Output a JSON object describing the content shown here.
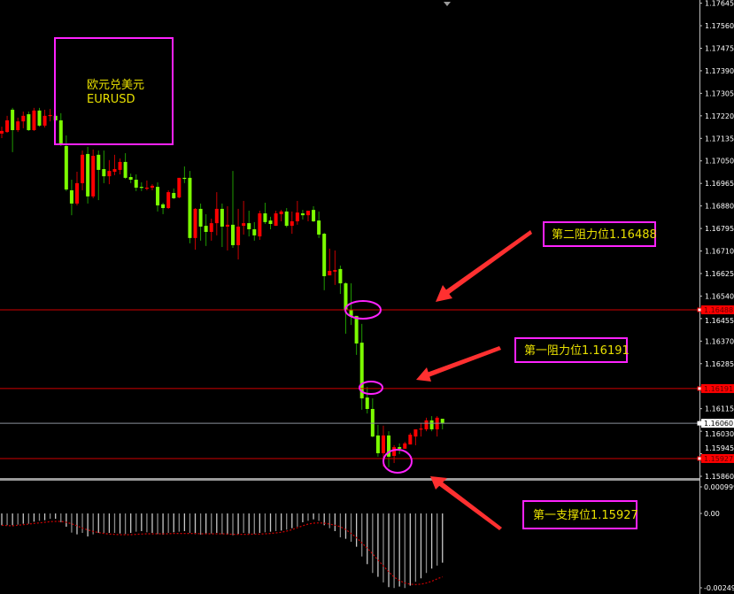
{
  "chart_data": {
    "type": "candlestick",
    "symbol_label": {
      "line1": "欧元兑美元",
      "line2": "EURUSD"
    },
    "colors": {
      "bull_body": "#ff0000",
      "bear_body": "#7cfc00",
      "bull_wick": "#c80000",
      "bear_wick": "#1f9a00",
      "level_line": "#d00000",
      "bid_line": "#8a909a",
      "annotation_border": "#ff22ff",
      "annotation_text": "#e8e000",
      "arrow": "#ff3030",
      "macd_bar": "#c8c8c8",
      "signal_line": "#cc0000"
    },
    "y_axis": {
      "ylim": [
        1.1586,
        1.17657
      ],
      "ticks": [
        "1.17645",
        "1.17560",
        "1.17475",
        "1.17390",
        "1.17305",
        "1.17220",
        "1.17135",
        "1.17050",
        "1.16965",
        "1.16880",
        "1.16795",
        "1.16710",
        "1.16625",
        "1.16540",
        "1.16455",
        "1.16370",
        "1.16285",
        "1.16115",
        "1.16030",
        "1.15945",
        "1.15860"
      ]
    },
    "current_price": {
      "value": 1.1606,
      "label": "1.16060"
    },
    "levels": [
      {
        "value": 1.16488,
        "label": "1.16488",
        "note": "第二阻力位1.16488"
      },
      {
        "value": 1.16191,
        "label": "1.16191",
        "note": "第一阻力位1.16191"
      },
      {
        "value": 1.15927,
        "label": "1.15927",
        "note": "第一支撑位1.15927"
      }
    ],
    "candles_ohlc": [
      [
        1.17153,
        1.17179,
        1.17136,
        1.17163
      ],
      [
        1.17159,
        1.1722,
        1.17156,
        1.17203
      ],
      [
        1.17243,
        1.1725,
        1.17083,
        1.17166
      ],
      [
        1.17166,
        1.17213,
        1.17159,
        1.17199
      ],
      [
        1.17199,
        1.17236,
        1.17173,
        1.1722
      ],
      [
        1.17226,
        1.17236,
        1.17163,
        1.17166
      ],
      [
        1.17166,
        1.1725,
        1.17163,
        1.1724
      ],
      [
        1.1724,
        1.1725,
        1.17179,
        1.17183
      ],
      [
        1.17183,
        1.17243,
        1.17176,
        1.1722
      ],
      [
        1.1722,
        1.17246,
        1.17199,
        1.17223
      ],
      [
        1.1722,
        1.17226,
        1.17196,
        1.17203
      ],
      [
        1.17203,
        1.1723,
        1.17106,
        1.17113
      ],
      [
        1.17106,
        1.17146,
        1.16936,
        1.16942
      ],
      [
        1.16939,
        1.16979,
        1.16845,
        1.16889
      ],
      [
        1.16889,
        1.17009,
        1.16882,
        1.16966
      ],
      [
        1.16966,
        1.17089,
        1.16939,
        1.17073
      ],
      [
        1.17076,
        1.17103,
        1.16889,
        1.16916
      ],
      [
        1.16916,
        1.17093,
        1.16909,
        1.17069
      ],
      [
        1.17073,
        1.17089,
        1.16902,
        1.17016
      ],
      [
        1.17019,
        1.17089,
        1.16966,
        1.16992
      ],
      [
        1.16992,
        1.17053,
        1.16962,
        1.17012
      ],
      [
        1.17009,
        1.17073,
        1.16996,
        1.17019
      ],
      [
        1.17016,
        1.17059,
        1.16999,
        1.17046
      ],
      [
        1.17046,
        1.17079,
        1.16982,
        1.16986
      ],
      [
        1.16989,
        1.17002,
        1.16966,
        1.16979
      ],
      [
        1.16979,
        1.16999,
        1.16936,
        1.16949
      ],
      [
        1.16952,
        1.16969,
        1.16936,
        1.16949
      ],
      [
        1.16946,
        1.16976,
        1.16939,
        1.16949
      ],
      [
        1.16949,
        1.16962,
        1.16939,
        1.16956
      ],
      [
        1.16952,
        1.16969,
        1.16859,
        1.16882
      ],
      [
        1.16886,
        1.16892,
        1.16849,
        1.16872
      ],
      [
        1.16872,
        1.16939,
        1.16869,
        1.16932
      ],
      [
        1.16929,
        1.16946,
        1.16906,
        1.16909
      ],
      [
        1.16912,
        1.16986,
        1.16909,
        1.16986
      ],
      [
        1.16986,
        1.17029,
        1.16966,
        1.16982
      ],
      [
        1.16986,
        1.17012,
        1.16739,
        1.16759
      ],
      [
        1.16759,
        1.16872,
        1.16715,
        1.16869
      ],
      [
        1.16869,
        1.16889,
        1.16749,
        1.16802
      ],
      [
        1.16805,
        1.16849,
        1.16729,
        1.16782
      ],
      [
        1.16782,
        1.16832,
        1.16749,
        1.16815
      ],
      [
        1.16815,
        1.16932,
        1.16769,
        1.16869
      ],
      [
        1.16869,
        1.16889,
        1.16725,
        1.16802
      ],
      [
        1.16802,
        1.16879,
        1.16712,
        1.16809
      ],
      [
        1.16809,
        1.17012,
        1.16722,
        1.16732
      ],
      [
        1.16732,
        1.16869,
        1.16678,
        1.16802
      ],
      [
        1.16805,
        1.16899,
        1.16772,
        1.16815
      ],
      [
        1.16815,
        1.16862,
        1.16765,
        1.16792
      ],
      [
        1.16792,
        1.16819,
        1.16749,
        1.16769
      ],
      [
        1.16765,
        1.16862,
        1.16752,
        1.16852
      ],
      [
        1.16852,
        1.16892,
        1.16812,
        1.16819
      ],
      [
        1.16825,
        1.16839,
        1.16792,
        1.16812
      ],
      [
        1.16805,
        1.16862,
        1.16805,
        1.16852
      ],
      [
        1.16849,
        1.16865,
        1.16822,
        1.16859
      ],
      [
        1.16859,
        1.16872,
        1.16799,
        1.16805
      ],
      [
        1.16805,
        1.16859,
        1.16775,
        1.16822
      ],
      [
        1.16822,
        1.16899,
        1.16809,
        1.16855
      ],
      [
        1.16852,
        1.16865,
        1.16829,
        1.16845
      ],
      [
        1.16845,
        1.16862,
        1.16822,
        1.16862
      ],
      [
        1.16865,
        1.16879,
        1.16819,
        1.16822
      ],
      [
        1.16825,
        1.16859,
        1.16759,
        1.16772
      ],
      [
        1.16775,
        1.16779,
        1.16562,
        1.16615
      ],
      [
        1.16618,
        1.16719,
        1.16618,
        1.16635
      ],
      [
        1.16632,
        1.16712,
        1.16582,
        1.16638
      ],
      [
        1.16642,
        1.16655,
        1.16548,
        1.16588
      ],
      [
        1.16588,
        1.16592,
        1.16398,
        1.16488
      ],
      [
        1.16488,
        1.16588,
        1.16431,
        1.16465
      ],
      [
        1.16465,
        1.16465,
        1.16318,
        1.16361
      ],
      [
        1.16364,
        1.16435,
        1.16111,
        1.16154
      ],
      [
        1.16157,
        1.16197,
        1.16097,
        1.16114
      ],
      [
        1.16114,
        1.16154,
        1.16007,
        1.1601
      ],
      [
        1.16014,
        1.16054,
        1.15934,
        1.15947
      ],
      [
        1.15947,
        1.16051,
        1.15897,
        1.16014
      ],
      [
        1.16014,
        1.1603,
        1.15894,
        1.15934
      ],
      [
        1.15937,
        1.15977,
        1.1591,
        1.1597
      ],
      [
        1.1597,
        1.15984,
        1.15944,
        1.15964
      ],
      [
        1.15964,
        1.1599,
        1.15964,
        1.15984
      ],
      [
        1.1598,
        1.16024,
        1.1598,
        1.16017
      ],
      [
        1.1601,
        1.16037,
        1.15977,
        1.16037
      ],
      [
        1.16037,
        1.16061,
        1.1601,
        1.1604
      ],
      [
        1.16037,
        1.16081,
        1.1603,
        1.16071
      ],
      [
        1.16071,
        1.16087,
        1.1603,
        1.16037
      ],
      [
        1.16037,
        1.16087,
        1.1601,
        1.16081
      ],
      [
        1.16077,
        1.16077,
        1.16037,
        1.1606
      ]
    ],
    "indicator": {
      "ticks": [
        "0.000999",
        "0.00",
        "-0.00249"
      ],
      "ylim": [
        -0.00249,
        0.000999
      ],
      "histogram": [
        -0.0004,
        -0.0004,
        -0.0004,
        -0.00038,
        -0.00035,
        -0.00035,
        -0.00028,
        -0.00025,
        -0.00023,
        -0.00018,
        -0.00018,
        -0.0003,
        -0.00045,
        -0.00065,
        -0.00071,
        -0.00066,
        -0.00078,
        -0.00071,
        -0.00066,
        -0.00066,
        -0.00066,
        -0.00066,
        -0.00068,
        -0.0007,
        -0.00066,
        -0.00062,
        -0.0006,
        -0.00064,
        -0.00066,
        -0.0007,
        -0.00072,
        -0.00066,
        -0.00064,
        -0.00062,
        -0.0006,
        -0.00066,
        -0.0007,
        -0.00072,
        -0.0007,
        -0.00068,
        -0.00066,
        -0.0007,
        -0.00072,
        -0.00074,
        -0.0007,
        -0.00066,
        -0.00068,
        -0.0007,
        -0.00066,
        -0.00064,
        -0.00062,
        -0.0006,
        -0.00058,
        -0.00055,
        -0.0005,
        -0.00045,
        -0.0003,
        -0.00025,
        -0.0002,
        -0.00025,
        -0.0004,
        -0.0005,
        -0.0006,
        -0.00081,
        -0.00086,
        -0.00096,
        -0.00113,
        -0.00146,
        -0.00172,
        -0.00202,
        -0.00215,
        -0.00234,
        -0.0025,
        -0.00253,
        -0.00248,
        -0.00253,
        -0.00245,
        -0.00232,
        -0.0022,
        -0.00202,
        -0.00187,
        -0.00177,
        -0.00167
      ],
      "signal": [
        -0.0004,
        -0.00041,
        -0.00042,
        -0.0004,
        -0.00038,
        -0.00036,
        -0.00034,
        -0.00032,
        -0.0003,
        -0.00028,
        -0.00027,
        -0.00027,
        -0.0003,
        -0.00035,
        -0.00042,
        -0.0005,
        -0.00056,
        -0.00061,
        -0.00065,
        -0.00068,
        -0.0007,
        -0.00071,
        -0.00072,
        -0.00072,
        -0.00072,
        -0.00071,
        -0.0007,
        -0.00069,
        -0.00069,
        -0.00069,
        -0.00069,
        -0.00069,
        -0.00068,
        -0.00068,
        -0.00068,
        -0.00068,
        -0.00068,
        -0.00069,
        -0.00069,
        -0.00069,
        -0.00069,
        -0.00069,
        -0.0007,
        -0.00071,
        -0.00071,
        -0.00071,
        -0.00071,
        -0.0007,
        -0.0007,
        -0.00069,
        -0.00068,
        -0.00066,
        -0.00064,
        -0.0006,
        -0.00055,
        -0.00048,
        -0.00042,
        -0.00036,
        -0.00033,
        -0.00032,
        -0.00033,
        -0.00036,
        -0.0004,
        -0.00045,
        -0.00055,
        -0.00068,
        -0.00082,
        -0.001,
        -0.00118,
        -0.00137,
        -0.00158,
        -0.00178,
        -0.00198,
        -0.00216,
        -0.00228,
        -0.00236,
        -0.0024,
        -0.00241,
        -0.0024,
        -0.00236,
        -0.0023,
        -0.00222,
        -0.00215
      ]
    }
  }
}
